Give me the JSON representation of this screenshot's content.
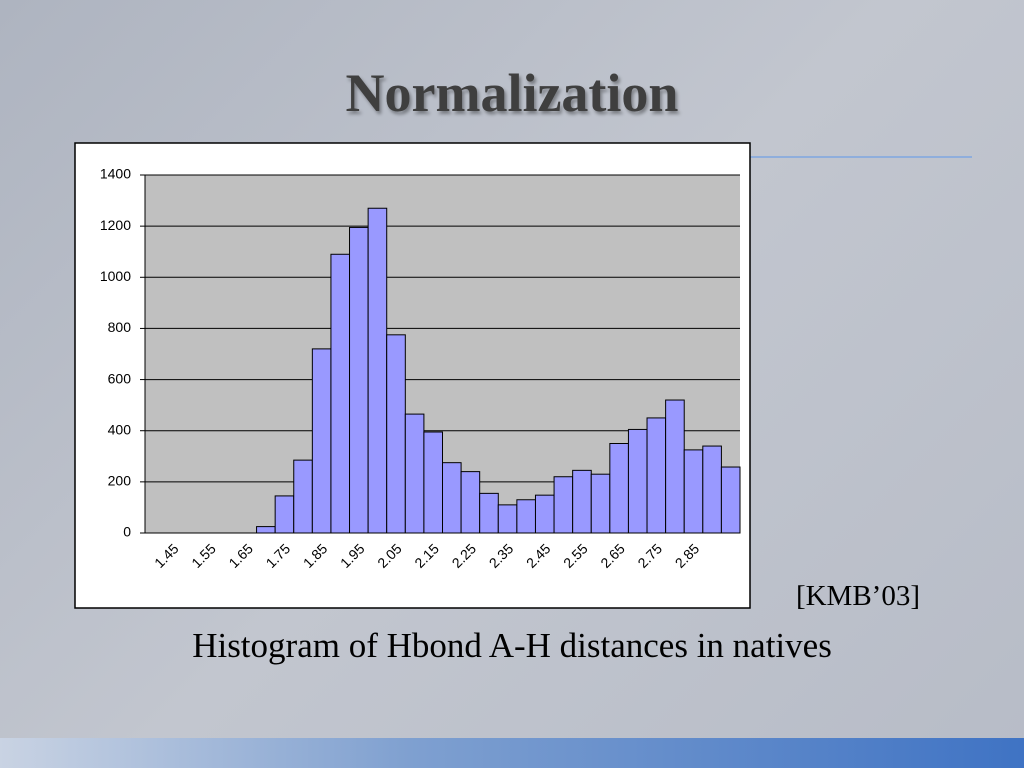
{
  "title": "Normalization",
  "citation": "[KMB’03]",
  "caption": "Histogram of Hbond A-H distances in natives",
  "chart_data": {
    "type": "bar",
    "categories": [
      null,
      "1.45",
      null,
      "1.55",
      null,
      "1.65",
      null,
      "1.75",
      null,
      "1.85",
      null,
      "1.95",
      null,
      "2.05",
      null,
      "2.15",
      null,
      "2.25",
      null,
      "2.35",
      null,
      "2.45",
      null,
      "2.55",
      null,
      "2.65",
      null,
      "2.75",
      null,
      "2.85",
      null,
      null
    ],
    "values": [
      0,
      0,
      0,
      0,
      0,
      0,
      25,
      145,
      285,
      720,
      1090,
      1195,
      1270,
      775,
      465,
      395,
      275,
      240,
      155,
      110,
      130,
      148,
      220,
      245,
      230,
      350,
      405,
      450,
      520,
      325,
      340,
      258
    ],
    "color": "#9999ff",
    "ylim": [
      0,
      1400
    ],
    "yticks": [
      0,
      200,
      400,
      600,
      800,
      1000,
      1200,
      1400
    ],
    "grid": true
  }
}
